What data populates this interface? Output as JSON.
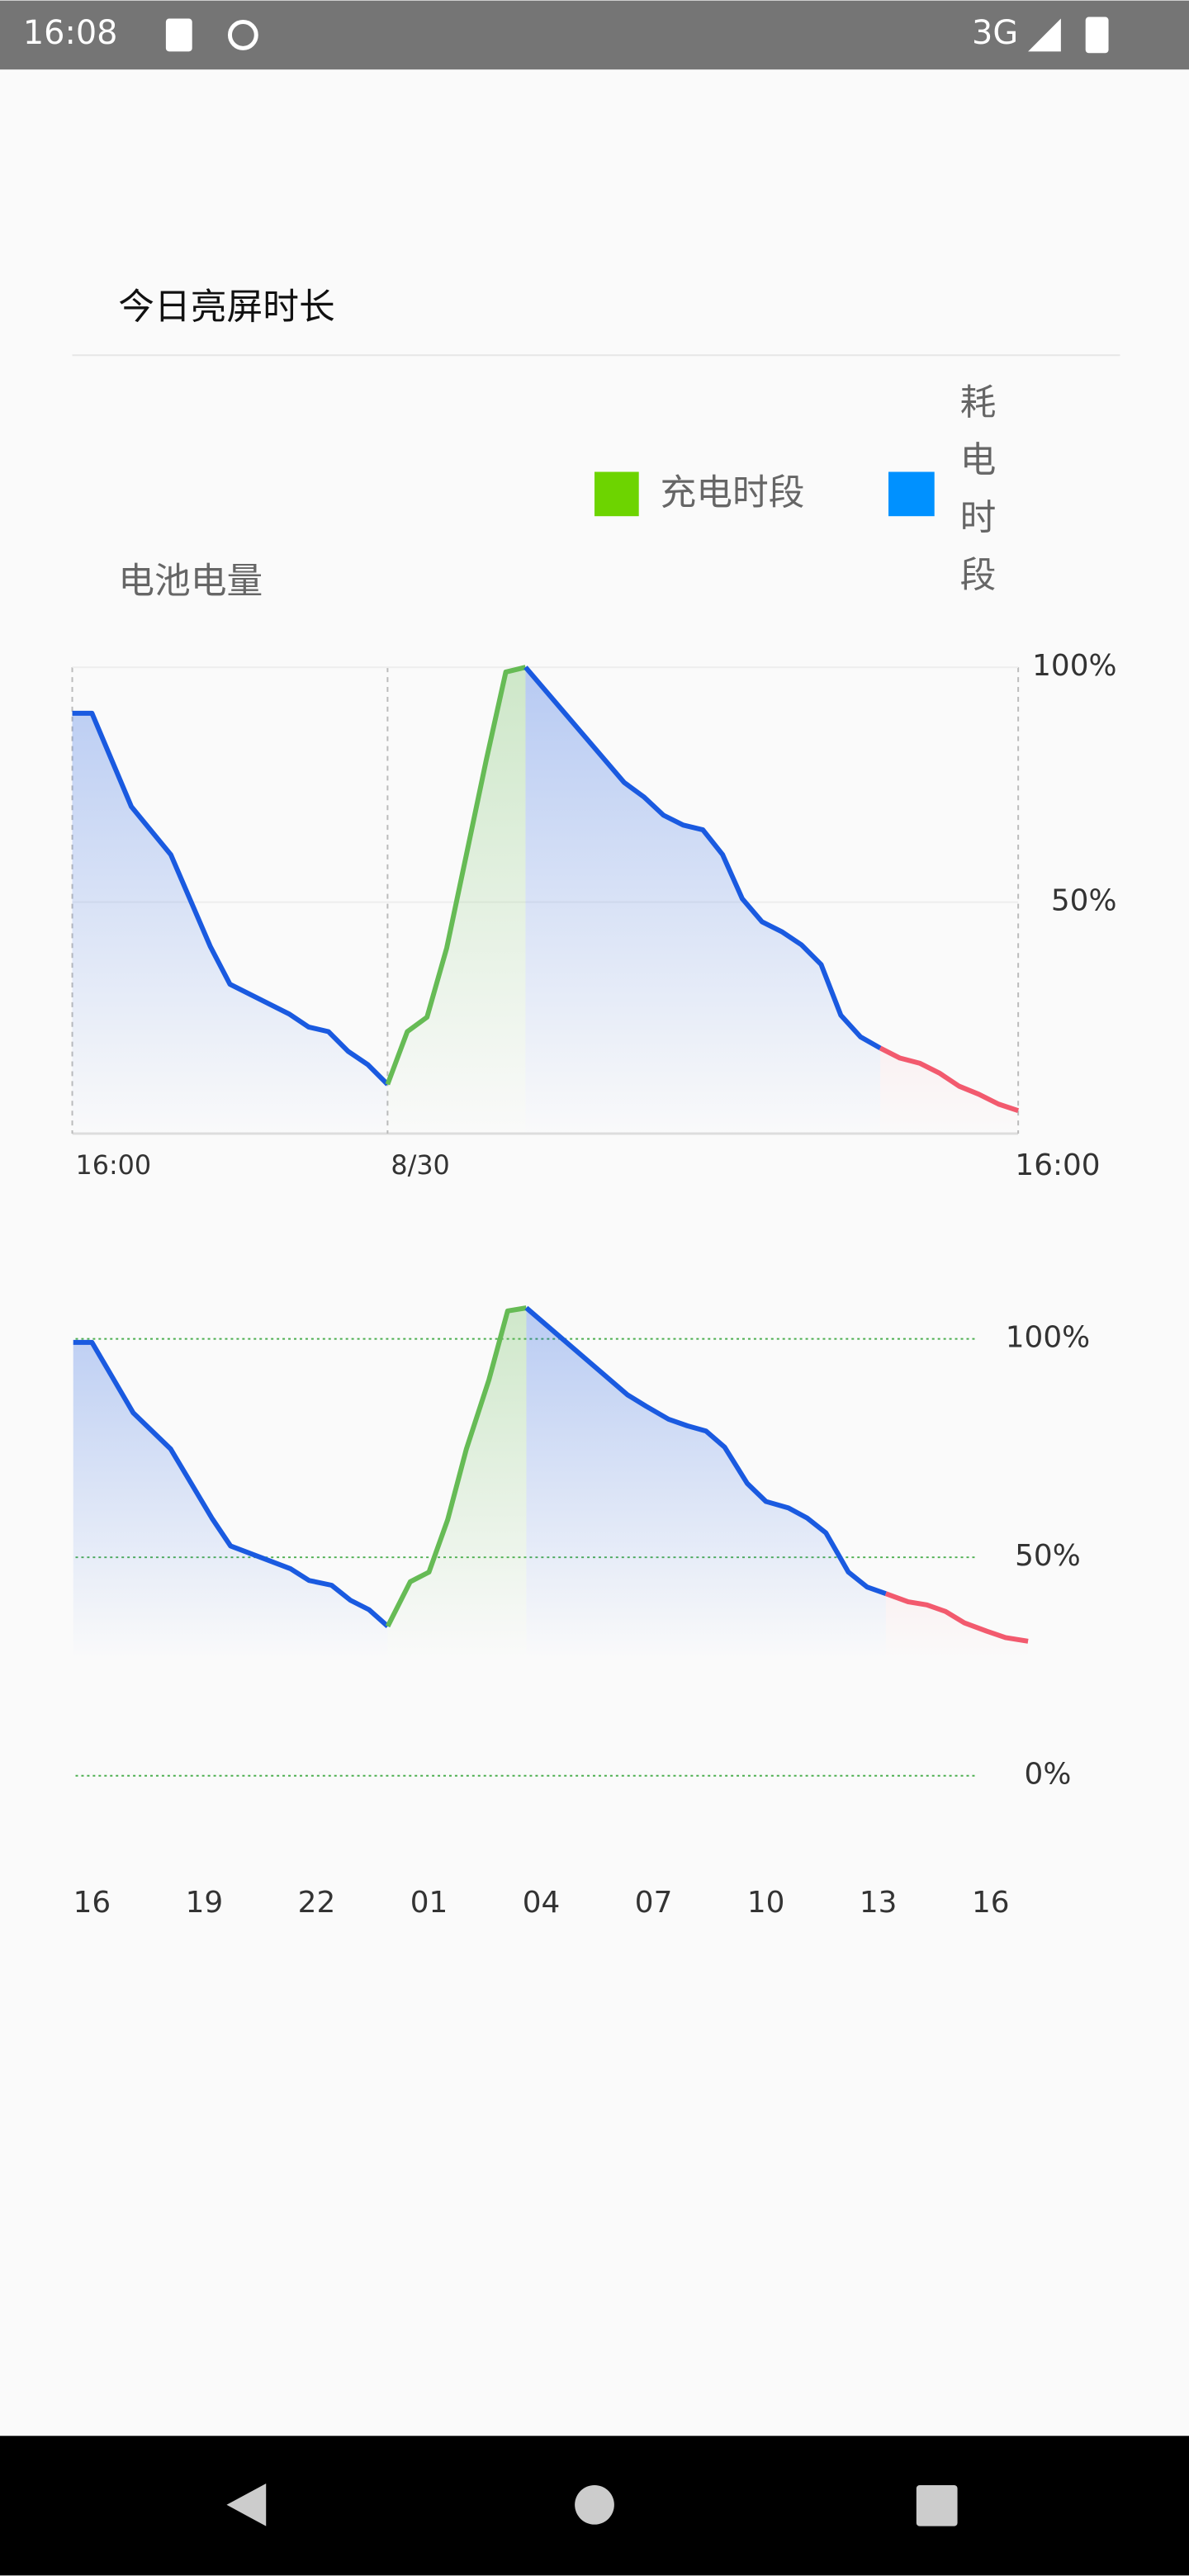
{
  "status_bar": {
    "time": "16:08",
    "network": "3G"
  },
  "section_title": "今日亮屏时长",
  "legend": [
    {
      "label": "充电时段",
      "color": "#6dd400"
    },
    {
      "label": "耗电时段",
      "color": "#0091ff"
    }
  ],
  "chart_title": "电池电量",
  "chart_data": [
    {
      "type": "line",
      "grid": true,
      "xlim": [
        0,
        24
      ],
      "xticks": [
        {
          "value": 0,
          "label": "16:00"
        },
        {
          "value": 8,
          "label": "8/30"
        },
        {
          "value": 24,
          "label": "16:00"
        }
      ],
      "ylim": [
        0,
        100
      ],
      "yticks": [
        {
          "value": 50,
          "label": "50%"
        },
        {
          "value": 100,
          "label": "100%"
        }
      ],
      "series": [
        {
          "color": "#1a5ae0",
          "x": [
            0,
            0.5,
            1.5,
            2.5,
            3.5,
            4,
            5.5,
            6,
            6.5,
            7,
            7.5,
            8
          ],
          "values": [
            90.2,
            90.2,
            70.3,
            60.1,
            40.6,
            32.5,
            26.2,
            23.4,
            22.4,
            18.2,
            15.4,
            11.2
          ]
        },
        {
          "color": "#66bb55",
          "x": [
            8,
            8.5,
            9,
            9.5,
            10,
            10.5,
            11,
            11.5
          ],
          "values": [
            11.2,
            22.4,
            25.5,
            40.2,
            60.1,
            80.1,
            99,
            100
          ]
        },
        {
          "color": "#1a5ae0",
          "x": [
            11.5,
            14,
            14.5,
            15,
            15.5,
            16,
            16.5,
            17,
            17.5,
            18,
            18.5,
            19,
            19.5,
            20,
            20.5
          ],
          "values": [
            100,
            75.5,
            72.4,
            68.5,
            66.4,
            65.4,
            60.1,
            50.7,
            45.8,
            43.7,
            40.9,
            36.7,
            25.9,
            21.3,
            18.9
          ]
        },
        {
          "color": "#f25a6e",
          "x": [
            20.5,
            21,
            21.5,
            22,
            22.5,
            23,
            23.5,
            24
          ],
          "values": [
            18.9,
            16.8,
            15.7,
            13.6,
            10.8,
            9.1,
            7,
            5.6
          ]
        }
      ]
    },
    {
      "type": "line",
      "grid": true,
      "xlim": [
        -0.5,
        25
      ],
      "xticks": [
        {
          "value": 0,
          "label": "16"
        },
        {
          "value": 3,
          "label": "19"
        },
        {
          "value": 6,
          "label": "22"
        },
        {
          "value": 9,
          "label": "01"
        },
        {
          "value": 12,
          "label": "04"
        },
        {
          "value": 15,
          "label": "07"
        },
        {
          "value": 18,
          "label": "10"
        },
        {
          "value": 21,
          "label": "13"
        },
        {
          "value": 24,
          "label": "16"
        }
      ],
      "ylim": [
        0,
        110
      ],
      "yticks": [
        {
          "value": 0,
          "label": "0%"
        },
        {
          "value": 50,
          "label": "50%"
        },
        {
          "value": 100,
          "label": "100%"
        }
      ],
      "series": [
        {
          "color": "#1a5ae0",
          "x": [
            -0.5,
            0,
            1.1,
            2.1,
            3.2,
            3.7,
            5.3,
            5.8,
            6.4,
            6.9,
            7.4,
            7.9
          ],
          "values": [
            99.2,
            99.2,
            83.1,
            74.8,
            59,
            52.6,
            47.4,
            44.7,
            43.6,
            40.2,
            38,
            34.2
          ]
        },
        {
          "color": "#66bb55",
          "x": [
            7.9,
            8.5,
            9,
            9.5,
            10,
            10.6,
            11.1,
            11.6
          ],
          "values": [
            34.2,
            44.4,
            46.6,
            58.6,
            74.8,
            90.6,
            106.4,
            107.1
          ]
        },
        {
          "color": "#1a5ae0",
          "x": [
            11.6,
            14.3,
            14.8,
            15.4,
            15.9,
            16.4,
            16.9,
            17.5,
            18,
            18.6,
            19.1,
            19.6,
            20.2,
            20.7,
            21.2
          ],
          "values": [
            107.1,
            87.2,
            84.6,
            81.6,
            80.1,
            78.9,
            75.2,
            66.9,
            62.8,
            61.3,
            59,
            55.6,
            46.6,
            43.2,
            41.7
          ]
        },
        {
          "color": "#f25a6e",
          "x": [
            21.2,
            21.8,
            22.3,
            22.8,
            23.3,
            23.9,
            24.4,
            25
          ],
          "values": [
            41.7,
            39.8,
            39.1,
            37.6,
            35,
            33.1,
            31.6,
            30.8
          ]
        }
      ]
    }
  ]
}
